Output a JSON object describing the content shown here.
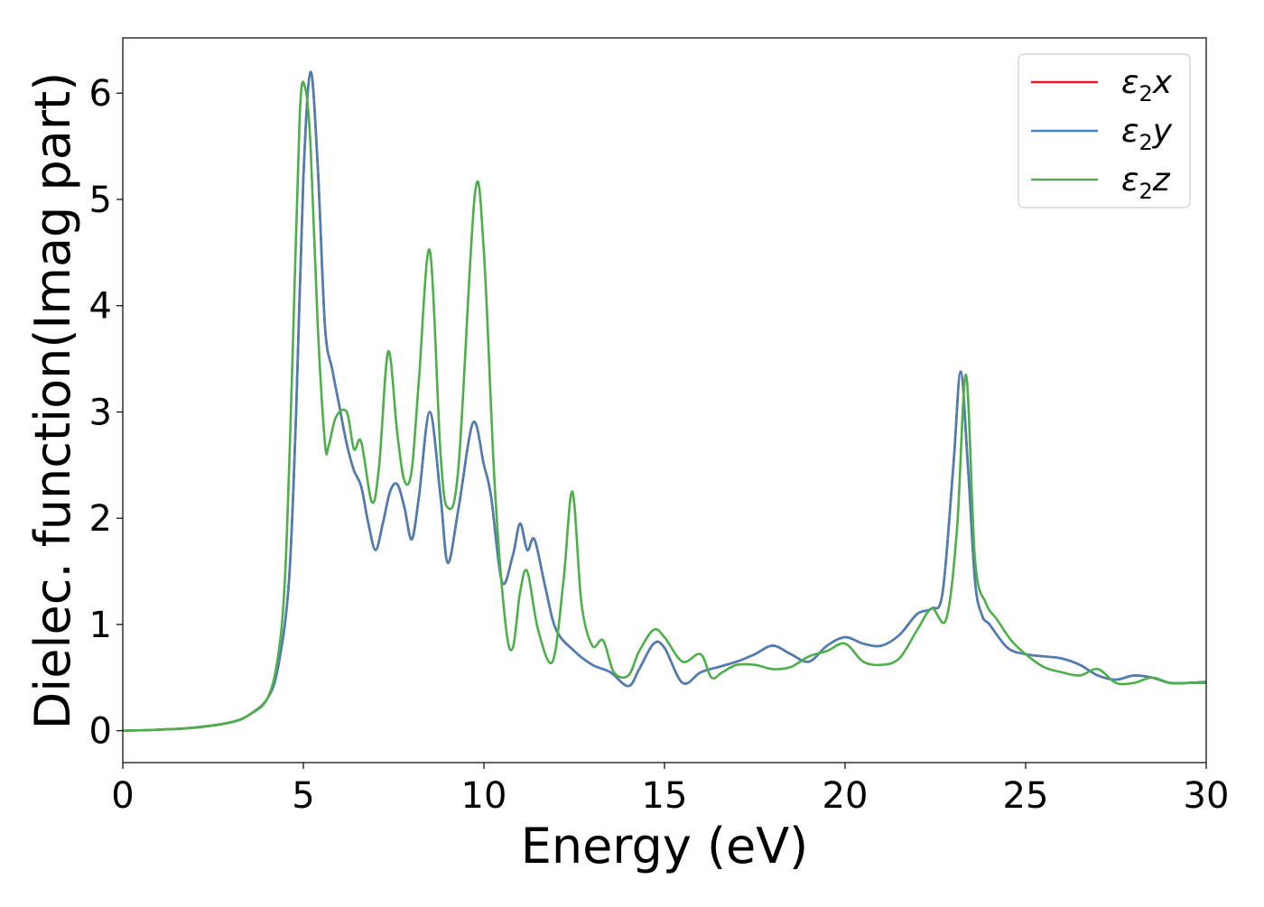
{
  "chart_data": {
    "type": "line",
    "xlabel": "Energy (eV)",
    "ylabel": "Dielec. function(Imag part)",
    "xlim": [
      0,
      30
    ],
    "ylim": [
      -0.3,
      6.52
    ],
    "xticks": [
      0,
      5,
      10,
      15,
      20,
      25,
      30
    ],
    "yticks": [
      0,
      1,
      2,
      3,
      4,
      5,
      6
    ],
    "grid": false,
    "legend_position": "top-right",
    "series": [
      {
        "name": "ε₂x",
        "legend_base": "ε",
        "legend_sub": "2",
        "legend_suffix": "x",
        "color": "#e41a1c",
        "x": [
          0,
          1,
          2,
          3,
          3.5,
          4,
          4.3,
          4.6,
          4.8,
          5.0,
          5.2,
          5.4,
          5.6,
          5.8,
          6.0,
          6.2,
          6.4,
          6.6,
          6.8,
          7.0,
          7.2,
          7.4,
          7.6,
          7.8,
          8.0,
          8.2,
          8.5,
          8.8,
          9.0,
          9.3,
          9.7,
          10.0,
          10.2,
          10.5,
          10.8,
          11.0,
          11.2,
          11.4,
          11.7,
          12.0,
          12.5,
          13.0,
          13.5,
          14.0,
          14.3,
          14.7,
          15.0,
          15.5,
          16.0,
          16.5,
          17.0,
          17.5,
          18.0,
          18.5,
          19.0,
          19.5,
          20.0,
          20.5,
          21.0,
          21.5,
          22.0,
          22.4,
          22.7,
          23.0,
          23.2,
          23.4,
          23.6,
          23.8,
          24.0,
          24.5,
          25.0,
          25.5,
          26.0,
          26.5,
          27.0,
          27.5,
          28.0,
          28.5,
          29.0,
          29.5,
          30.0
        ],
        "values": [
          0.0,
          0.01,
          0.03,
          0.08,
          0.15,
          0.3,
          0.6,
          1.4,
          3.0,
          5.2,
          6.2,
          5.3,
          3.8,
          3.4,
          3.05,
          2.7,
          2.45,
          2.3,
          1.95,
          1.7,
          1.95,
          2.25,
          2.32,
          2.1,
          1.8,
          2.2,
          3.0,
          2.2,
          1.58,
          2.1,
          2.9,
          2.5,
          2.2,
          1.4,
          1.65,
          1.95,
          1.7,
          1.8,
          1.35,
          0.95,
          0.75,
          0.62,
          0.55,
          0.42,
          0.58,
          0.82,
          0.78,
          0.45,
          0.55,
          0.6,
          0.65,
          0.72,
          0.8,
          0.72,
          0.65,
          0.8,
          0.88,
          0.82,
          0.8,
          0.9,
          1.1,
          1.15,
          1.3,
          2.5,
          3.38,
          2.5,
          1.4,
          1.08,
          1.0,
          0.78,
          0.72,
          0.7,
          0.68,
          0.62,
          0.52,
          0.48,
          0.52,
          0.5,
          0.45,
          0.45,
          0.46
        ]
      },
      {
        "name": "ε₂y",
        "legend_base": "ε",
        "legend_sub": "2",
        "legend_suffix": "y",
        "color": "#4a7fb5",
        "x": [
          0,
          1,
          2,
          3,
          3.5,
          4,
          4.3,
          4.6,
          4.8,
          5.0,
          5.2,
          5.4,
          5.6,
          5.8,
          6.0,
          6.2,
          6.4,
          6.6,
          6.8,
          7.0,
          7.2,
          7.4,
          7.6,
          7.8,
          8.0,
          8.2,
          8.5,
          8.8,
          9.0,
          9.3,
          9.7,
          10.0,
          10.2,
          10.5,
          10.8,
          11.0,
          11.2,
          11.4,
          11.7,
          12.0,
          12.5,
          13.0,
          13.5,
          14.0,
          14.3,
          14.7,
          15.0,
          15.5,
          16.0,
          16.5,
          17.0,
          17.5,
          18.0,
          18.5,
          19.0,
          19.5,
          20.0,
          20.5,
          21.0,
          21.5,
          22.0,
          22.4,
          22.7,
          23.0,
          23.2,
          23.4,
          23.6,
          23.8,
          24.0,
          24.5,
          25.0,
          25.5,
          26.0,
          26.5,
          27.0,
          27.5,
          28.0,
          28.5,
          29.0,
          29.5,
          30.0
        ],
        "values": [
          0.0,
          0.01,
          0.03,
          0.08,
          0.15,
          0.3,
          0.6,
          1.4,
          3.0,
          5.2,
          6.2,
          5.3,
          3.8,
          3.4,
          3.05,
          2.7,
          2.45,
          2.3,
          1.95,
          1.7,
          1.95,
          2.25,
          2.32,
          2.1,
          1.8,
          2.2,
          3.0,
          2.2,
          1.58,
          2.1,
          2.9,
          2.5,
          2.2,
          1.4,
          1.65,
          1.95,
          1.7,
          1.8,
          1.35,
          0.95,
          0.75,
          0.62,
          0.55,
          0.42,
          0.58,
          0.82,
          0.78,
          0.45,
          0.55,
          0.6,
          0.65,
          0.72,
          0.8,
          0.72,
          0.65,
          0.8,
          0.88,
          0.82,
          0.8,
          0.9,
          1.1,
          1.15,
          1.3,
          2.5,
          3.38,
          2.5,
          1.4,
          1.08,
          1.0,
          0.78,
          0.72,
          0.7,
          0.68,
          0.62,
          0.52,
          0.48,
          0.52,
          0.5,
          0.45,
          0.45,
          0.46
        ]
      },
      {
        "name": "ε₂z",
        "legend_base": "ε",
        "legend_sub": "2",
        "legend_suffix": "z",
        "color": "#4daf4a",
        "x": [
          0,
          1,
          2,
          3,
          3.5,
          4,
          4.3,
          4.5,
          4.7,
          4.9,
          5.05,
          5.2,
          5.4,
          5.6,
          5.7,
          5.9,
          6.2,
          6.4,
          6.6,
          6.9,
          7.1,
          7.35,
          7.6,
          7.8,
          8.0,
          8.2,
          8.5,
          8.8,
          9.0,
          9.3,
          9.75,
          10.0,
          10.3,
          10.6,
          10.8,
          11.0,
          11.2,
          11.5,
          11.9,
          12.2,
          12.45,
          12.7,
          13.0,
          13.3,
          13.6,
          14.0,
          14.3,
          14.7,
          15.0,
          15.5,
          16.0,
          16.3,
          16.6,
          17.0,
          17.5,
          18.0,
          18.5,
          19.0,
          19.5,
          20.0,
          20.5,
          21.0,
          21.5,
          22.0,
          22.4,
          22.8,
          23.1,
          23.35,
          23.6,
          23.9,
          24.2,
          24.6,
          25.0,
          25.5,
          26.0,
          26.5,
          27.0,
          27.5,
          28.0,
          28.5,
          29.0,
          29.5,
          30.0
        ],
        "values": [
          0.0,
          0.01,
          0.03,
          0.08,
          0.15,
          0.3,
          0.7,
          1.5,
          3.5,
          5.8,
          6.05,
          5.5,
          3.8,
          2.7,
          2.68,
          2.95,
          3.0,
          2.65,
          2.72,
          2.15,
          2.5,
          3.57,
          2.8,
          2.35,
          2.45,
          3.3,
          4.52,
          2.6,
          2.1,
          2.5,
          5.05,
          4.5,
          2.3,
          1.0,
          0.78,
          1.3,
          1.5,
          0.95,
          0.65,
          1.4,
          2.25,
          1.2,
          0.8,
          0.85,
          0.55,
          0.52,
          0.75,
          0.95,
          0.88,
          0.65,
          0.72,
          0.5,
          0.55,
          0.62,
          0.62,
          0.58,
          0.6,
          0.7,
          0.75,
          0.82,
          0.65,
          0.62,
          0.68,
          0.95,
          1.15,
          1.05,
          1.9,
          3.35,
          1.6,
          1.2,
          1.05,
          0.85,
          0.72,
          0.6,
          0.55,
          0.52,
          0.58,
          0.45,
          0.45,
          0.5,
          0.45,
          0.45,
          0.45
        ]
      }
    ]
  }
}
